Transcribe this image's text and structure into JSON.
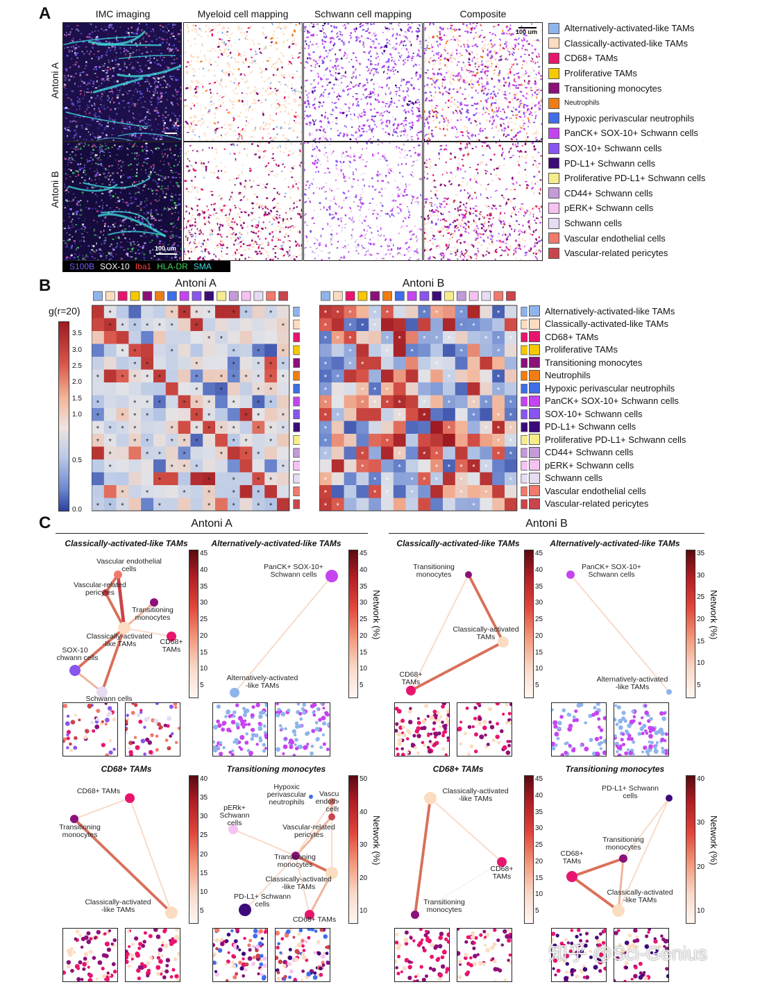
{
  "panel_labels": [
    "A",
    "B",
    "C"
  ],
  "panelA": {
    "columns": [
      "IMC imaging",
      "Myeloid cell mapping",
      "Schwann cell mapping",
      "Composite"
    ],
    "rows": [
      "Antoni A",
      "Antoni B"
    ],
    "scale_bars": [
      "100 um",
      "100 um"
    ],
    "channels": [
      {
        "label": "S100B",
        "color": "#7b5cff"
      },
      {
        "label": "SOX-10",
        "color": "#ffffff"
      },
      {
        "label": "Iba1",
        "color": "#ff4040"
      },
      {
        "label": "HLA-DR",
        "color": "#3ddc5a"
      },
      {
        "label": "SMA",
        "color": "#40e0e0"
      }
    ]
  },
  "cell_types": [
    {
      "label": "Alternatively-activated-like TAMs",
      "color": "#8fb4ec"
    },
    {
      "label": "Classically-activated-like TAMs",
      "color": "#fcdcc0"
    },
    {
      "label": "CD68+ TAMs",
      "color": "#e8156e"
    },
    {
      "label": "Proliferative TAMs",
      "color": "#f5c800"
    },
    {
      "label": "Transitioning monocytes",
      "color": "#8c1079"
    },
    {
      "label": "Neutrophils",
      "color": "#f07d13"
    },
    {
      "label": "Hypoxic perivascular neutrophils",
      "color": "#3f6ee8"
    },
    {
      "label": "PanCK+ SOX-10+ Schwann cells",
      "color": "#c544f0"
    },
    {
      "label": "SOX-10+ Schwann cells",
      "color": "#8855ee"
    },
    {
      "label": "PD-L1+ Schwann cells",
      "color": "#3d0a7a"
    },
    {
      "label": "Proliferative PD-L1+ Schwann cells",
      "color": "#f7ec8a"
    },
    {
      "label": "CD44+ Schwann cells",
      "color": "#c49ad8"
    },
    {
      "label": "pERK+ Schwann cells",
      "color": "#f6c2f2"
    },
    {
      "label": "Schwann cells",
      "color": "#e6dcf2"
    },
    {
      "label": "Vascular endothelial cells",
      "color": "#f07a6c"
    },
    {
      "label": "Vascular-related pericytes",
      "color": "#c9454b"
    }
  ],
  "panelB": {
    "colorbar_title": "g(r=20)",
    "colorbar_ticks": [
      "3.5",
      "3.0",
      "2.5",
      "2.0",
      "1.5",
      "1.0",
      "0.5",
      "0.0"
    ],
    "heatmaps": [
      {
        "title": "Antoni A"
      },
      {
        "title": "Antoni B"
      }
    ]
  },
  "panelC": {
    "groups": [
      "Antoni A",
      "Antoni B"
    ],
    "networks": [
      {
        "title": "Classically-activated-like TAMs",
        "ticks": [
          "45",
          "40",
          "35",
          "30",
          "25",
          "20",
          "15",
          "10",
          "5"
        ],
        "cbtitle": "",
        "nodes": [
          {
            "label": "Vascular endothelial cells",
            "lines": [
              "Vascular endothelial",
              "cells"
            ],
            "color": "#f07a6c"
          },
          {
            "label": "Vascular-related pericytes",
            "lines": [
              "Vascular-related",
              "pericytes"
            ],
            "color": "#c9454b"
          },
          {
            "label": "Transitioning monocytes",
            "lines": [
              "Transitioning",
              "monocytes"
            ],
            "color": "#8c1079"
          },
          {
            "label": "Classically-activated-like TAMs",
            "lines": [
              "Classically-activated",
              "-like TAMs"
            ],
            "color": "#fcdcc0"
          },
          {
            "label": "CD68+ TAMs",
            "lines": [
              "CD68+",
              "TAMs"
            ],
            "color": "#e8156e"
          },
          {
            "label": "SOX-10 Schwann cells",
            "lines": [
              "SOX-10",
              "Schwann cells"
            ],
            "color": "#8855ee"
          },
          {
            "label": "Schwann cells",
            "lines": [
              "Schwann cells"
            ],
            "color": "#e6dcf2"
          }
        ]
      },
      {
        "title": "Alternatively-activated-like TAMs",
        "ticks": [
          "45",
          "40",
          "35",
          "30",
          "25",
          "20",
          "15",
          "10",
          "5"
        ],
        "cbtitle": "Network (%)",
        "nodes": [
          {
            "label": "PanCK+ SOX-10+ Schwann cells",
            "lines": [
              "PanCK+ SOX-10+",
              "Schwann cells"
            ],
            "color": "#c544f0"
          },
          {
            "label": "Alternatively-activated -like TAMs",
            "lines": [
              "Alternatively-activated",
              "-like TAMs"
            ],
            "color": "#8fb4ec"
          }
        ]
      },
      {
        "title": "Classically-activated-like TAMs",
        "ticks": [
          "45",
          "40",
          "35",
          "30",
          "25",
          "20",
          "15",
          "10",
          "5"
        ],
        "cbtitle": "",
        "nodes": [
          {
            "label": "Transitioning monocytes",
            "lines": [
              "Transitioning",
              "monocytes"
            ],
            "color": "#8c1079"
          },
          {
            "label": "Classically-activated TAMs",
            "lines": [
              "Classically-activated",
              "TAMs"
            ],
            "color": "#fcdcc0"
          },
          {
            "label": "CD68+ TAMs",
            "lines": [
              "CD68+",
              "TAMs"
            ],
            "color": "#e8156e"
          }
        ]
      },
      {
        "title": "Alternatively-activated-like TAMs",
        "ticks": [
          "35",
          "30",
          "25",
          "20",
          "15",
          "10",
          "5"
        ],
        "cbtitle": "Network (%)",
        "nodes": [
          {
            "label": "PanCK+ SOX-10+ Schwann cells",
            "lines": [
              "PanCK+ SOX-10+",
              "Schwann cells"
            ],
            "color": "#c544f0"
          },
          {
            "label": "Alternatively-activated -like TAMs",
            "lines": [
              "Alternatively-activated",
              "-like TAMs"
            ],
            "color": "#8fb4ec"
          }
        ]
      },
      {
        "title": "CD68+ TAMs",
        "ticks": [
          "40",
          "35",
          "30",
          "25",
          "20",
          "15",
          "10",
          "5"
        ],
        "cbtitle": "",
        "nodes": [
          {
            "label": "CD68+ TAMs",
            "lines": [
              "CD68+ TAMs"
            ],
            "color": "#e8156e"
          },
          {
            "label": "Transitioning monocytes",
            "lines": [
              "Transitioning",
              "monocytes"
            ],
            "color": "#8c1079"
          },
          {
            "label": "Classically-activated -like TAMs",
            "lines": [
              "Classically-activated",
              "-like TAMs"
            ],
            "color": "#fcdcc0"
          }
        ]
      },
      {
        "title": "Transitioning monocytes",
        "ticks": [
          "50",
          "40",
          "30",
          "20",
          "10"
        ],
        "cbtitle": "Network (%)",
        "nodes": [
          {
            "label": "Hypoxic perivascular neutrophils",
            "lines": [
              "Hypoxic",
              "perivascular",
              "neutrophils"
            ],
            "color": "#3f6ee8"
          },
          {
            "label": "Vascular endothelial cells",
            "lines": [
              "Vascular",
              "endothelial",
              "cells"
            ],
            "color": "#f07a6c"
          },
          {
            "label": "pERk+ Schwann cells",
            "lines": [
              "pERk+",
              "Schwann",
              "cells"
            ],
            "color": "#f6c2f2"
          },
          {
            "label": "Vascular-related pericytes",
            "lines": [
              "Vascular-related",
              "pericytes"
            ],
            "color": "#c9454b"
          },
          {
            "label": "Transitioning monocytes",
            "lines": [
              "Transitioning",
              "monocytes"
            ],
            "color": "#8c1079"
          },
          {
            "label": "Classically-activated -like TAMs",
            "lines": [
              "Classically-activated",
              "-like TAMs"
            ],
            "color": "#fcdcc0"
          },
          {
            "label": "PD-L1+ Schwann cells",
            "lines": [
              "PD-L1+ Schwann",
              "cells"
            ],
            "color": "#3d0a7a"
          },
          {
            "label": "CD68+ TAMs",
            "lines": [
              "CD68+ TAMs"
            ],
            "color": "#e8156e"
          }
        ]
      },
      {
        "title": "CD68+ TAMs",
        "ticks": [
          "45",
          "40",
          "35",
          "30",
          "25",
          "20",
          "15",
          "10",
          "5"
        ],
        "cbtitle": "",
        "nodes": [
          {
            "label": "Classically-activated -like TAMs",
            "lines": [
              "Classically-activated",
              "-like TAMs"
            ],
            "color": "#fcdcc0"
          },
          {
            "label": "CD68+ TAMs",
            "lines": [
              "CD68+",
              "TAMs"
            ],
            "color": "#e8156e"
          },
          {
            "label": "Transitioning monocytes",
            "lines": [
              "Transitioning",
              "monocytes"
            ],
            "color": "#8c1079"
          }
        ]
      },
      {
        "title": "Transitioning monocytes",
        "ticks": [
          "40",
          "30",
          "20",
          "10"
        ],
        "cbtitle": "Network (%)",
        "nodes": [
          {
            "label": "PD-L1+ Schwann cells",
            "lines": [
              "PD-L1+ Schwann",
              "cells"
            ],
            "color": "#3d0a7a"
          },
          {
            "label": "Transitioning monocytes",
            "lines": [
              "Transitioning",
              "monocytes"
            ],
            "color": "#8c1079"
          },
          {
            "label": "CD68+ TAMs",
            "lines": [
              "CD68+",
              "TAMs"
            ],
            "color": "#e8156e"
          },
          {
            "label": "Classically-activated -like TAMs",
            "lines": [
              "Classically-activated",
              "-like TAMs"
            ],
            "color": "#fcdcc0"
          }
        ]
      }
    ]
  },
  "watermark": "知乎 @Sci-Genius"
}
